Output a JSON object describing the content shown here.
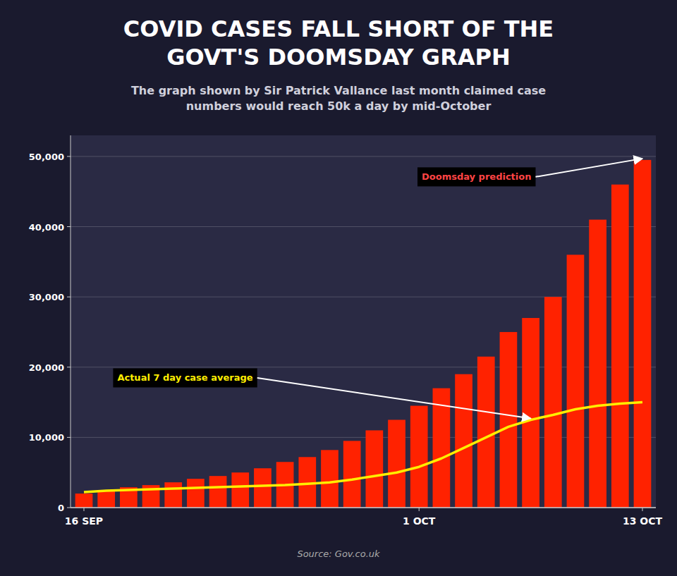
{
  "chart_data": {
    "type": "bar",
    "title": "COVID CASES FALL SHORT OF THE\nGOVT'S DOOMSDAY GRAPH",
    "subtitle": "The graph shown by Sir Patrick Vallance last month claimed case\nnumbers would reach 50k a day by mid-October",
    "source": "Source: Gov.co.uk",
    "categories": [
      "16 SEP",
      null,
      null,
      null,
      null,
      null,
      null,
      null,
      null,
      null,
      null,
      null,
      null,
      null,
      null,
      "1 OCT",
      null,
      null,
      null,
      null,
      null,
      null,
      null,
      null,
      null,
      "13 OCT"
    ],
    "series": [
      {
        "type": "bar",
        "color": "#ff2200",
        "values": [
          2000,
          2400,
          2900,
          3200,
          3600,
          4100,
          4500,
          5000,
          5600,
          6500,
          7200,
          8200,
          9500,
          11000,
          12500,
          14500,
          17000,
          19000,
          21500,
          25000,
          27000,
          30000,
          36000,
          41000,
          46000,
          49500
        ]
      },
      {
        "type": "line",
        "color": "#ffee00",
        "values": [
          2200,
          2400,
          2500,
          2600,
          2700,
          2800,
          2900,
          3000,
          3100,
          3200,
          3400,
          3600,
          4000,
          4500,
          5000,
          5800,
          7000,
          8500,
          10000,
          11500,
          12500,
          13200,
          14000,
          14500,
          14800,
          15000
        ]
      }
    ],
    "annotations": [
      {
        "text": "Doomsday prediction",
        "color": "#ff4444",
        "series": 0,
        "index": 25
      },
      {
        "text": "Actual 7 day case average",
        "color": "#ffee00",
        "series": 1,
        "index": 20
      }
    ],
    "ylim": [
      0,
      53000
    ],
    "yticks": [
      0,
      {
        "value": 10000,
        "label": "10,000"
      },
      {
        "value": 20000,
        "label": "20,000"
      },
      {
        "value": 30000,
        "label": "30,000"
      },
      {
        "value": 40000,
        "label": "40,000"
      },
      {
        "value": 50000,
        "label": "50,000"
      }
    ],
    "grid": true
  }
}
